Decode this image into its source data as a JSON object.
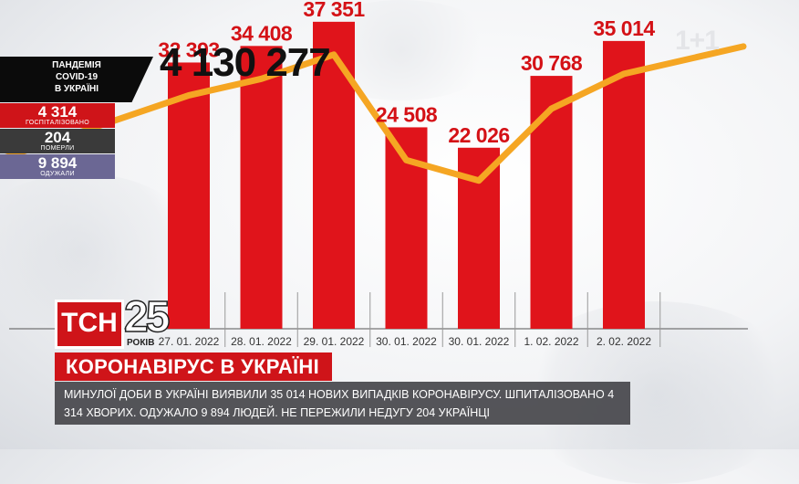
{
  "total_cases": "4 130 277",
  "panel": {
    "title_line1": "ПАНДЕМІЯ",
    "title_line2": "COVID-19",
    "title_line3": "В УКРАЇНІ",
    "hospitalized_value": "4 314",
    "hospitalized_label": "ГОСПІТАЛІЗОВАНО",
    "deaths_value": "204",
    "deaths_label": "ПОМЕРЛИ",
    "recovered_value": "9 894",
    "recovered_label": "ОДУЖАЛИ"
  },
  "channel": {
    "watermark": "1+1",
    "logo": "ТСН",
    "years_number": "25",
    "years_word": "РОКІВ"
  },
  "headline": "КОРОНАВІРУС В УКРАЇНІ",
  "ticker_text": "МИНУЛОЇ ДОБИ В УКРАЇНІ ВИЯВИЛИ 35 014 НОВИХ ВИПАДКІВ КОРОНАВІРУСУ. ШПИТАЛІЗОВАНО 4 314 ХВОРИХ. ОДУЖАЛО 9 894 ЛЮДЕЙ. НЕ ПЕРЕЖИЛИ НЕДУГУ 204 УКРАЇНЦІ",
  "colors": {
    "bar": "#e0141b",
    "trend": "#f5a623",
    "accent": "#cf1419"
  },
  "chart_data": {
    "type": "bar",
    "categories": [
      "27. 01. 2022",
      "28. 01. 2022",
      "29. 01. 2022",
      "30. 01. 2022",
      "30. 01. 2022",
      "1. 02. 2022",
      "2. 02. 2022"
    ],
    "values": [
      32393,
      34408,
      37351,
      24508,
      22026,
      30768,
      35014
    ],
    "value_labels": [
      "32 393",
      "34 408",
      "37 351",
      "24 508",
      "22 026",
      "30 768",
      "35 014"
    ],
    "ylim": [
      0,
      40000
    ],
    "grid": false,
    "trend_line": true
  }
}
